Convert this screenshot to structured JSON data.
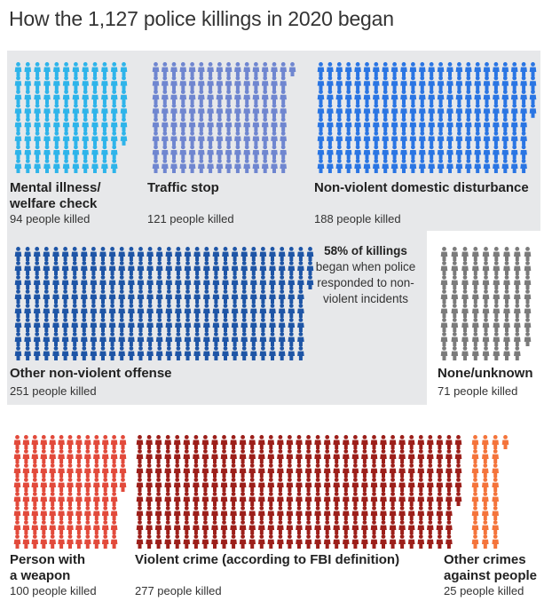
{
  "title": "How the 1,127 police killings in 2020 began",
  "callout": {
    "bold": "58% of killings",
    "rest": "began when police responded to non-violent incidents"
  },
  "chart_data": {
    "type": "pictogram",
    "title": "How the 1,127 police killings in 2020 began",
    "total": 1127,
    "categories": [
      {
        "id": "mental",
        "label_lines": [
          "Mental illness/",
          "welfare check"
        ],
        "count_text": "94 people killed",
        "value": 94,
        "color": "#2eb4ea",
        "group": "non-violent"
      },
      {
        "id": "traffic",
        "label_lines": [
          "Traffic stop"
        ],
        "count_text": "121 people killed",
        "value": 121,
        "color": "#6f86d0",
        "group": "non-violent"
      },
      {
        "id": "domestic",
        "label_lines": [
          "Non-violent domestic disturbance"
        ],
        "count_text": "188 people killed",
        "value": 188,
        "color": "#2a75e3",
        "group": "non-violent"
      },
      {
        "id": "offense",
        "label_lines": [
          "Other non-violent offense"
        ],
        "count_text": "251 people killed",
        "value": 251,
        "color": "#1e55a6",
        "group": "non-violent"
      },
      {
        "id": "unknown",
        "label_lines": [
          "None/unknown"
        ],
        "count_text": "71 people killed",
        "value": 71,
        "color": "#7b7b7b",
        "group": "unknown"
      },
      {
        "id": "weapon",
        "label_lines": [
          "Person with",
          "a weapon"
        ],
        "count_text": "100 people killed",
        "value": 100,
        "color": "#e24a3b",
        "group": "violent"
      },
      {
        "id": "violent",
        "label_lines": [
          "Violent crime (according to FBI definition)"
        ],
        "count_text": "277 people killed",
        "value": 277,
        "color": "#9c1f1a",
        "group": "violent"
      },
      {
        "id": "othercrimes",
        "label_lines": [
          "Other crimes",
          "against people"
        ],
        "count_text": "25 people killed",
        "value": 25,
        "color": "#f4743b",
        "group": "violent"
      }
    ]
  }
}
